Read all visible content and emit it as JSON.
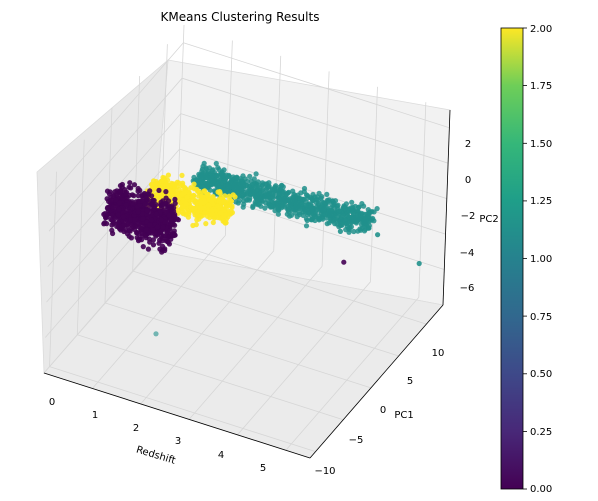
{
  "chart_data": {
    "type": "scatter",
    "projection": "3d",
    "title": "KMeans Clustering Results",
    "xlabel": "Redshift",
    "ylabel": "PC1",
    "zlabel": "PC2",
    "x_ticks": [
      "0",
      "1",
      "2",
      "3",
      "4",
      "5"
    ],
    "y_ticks": [
      "−10",
      "−5",
      "0",
      "5",
      "10"
    ],
    "z_ticks": [
      "2",
      "0",
      "−2",
      "−4",
      "−6"
    ],
    "colorbar": {
      "colormap": "viridis",
      "range": [
        0.0,
        2.0
      ],
      "ticks": [
        "0.00",
        "0.25",
        "0.50",
        "0.75",
        "1.00",
        "1.25",
        "1.50",
        "1.75",
        "2.00"
      ]
    },
    "clusters": [
      {
        "label": 0,
        "color": "#440154",
        "approx_redshift_range": [
          0.1,
          1.6
        ],
        "approx_pc1_range": [
          -4,
          2
        ],
        "approx_pc2_range": [
          -5,
          0.5
        ]
      },
      {
        "label": 1,
        "color": "#21918c",
        "approx_redshift_range": [
          1.5,
          5.0
        ],
        "approx_pc1_range": [
          -2,
          12
        ],
        "approx_pc2_range": [
          -6,
          1
        ]
      },
      {
        "label": 2,
        "color": "#fde725",
        "approx_redshift_range": [
          0.9,
          3.0
        ],
        "approx_pc1_range": [
          -3,
          5
        ],
        "approx_pc2_range": [
          -3,
          1
        ]
      }
    ],
    "grid": true,
    "legend": "none"
  }
}
